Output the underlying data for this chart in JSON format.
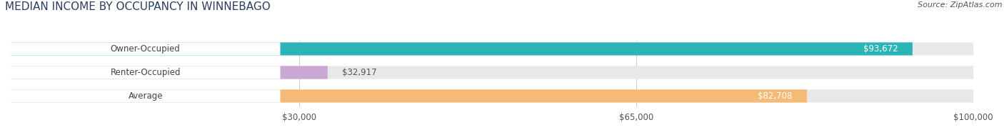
{
  "title": "MEDIAN INCOME BY OCCUPANCY IN WINNEBAGO",
  "source": "Source: ZipAtlas.com",
  "categories": [
    "Owner-Occupied",
    "Renter-Occupied",
    "Average"
  ],
  "values": [
    93672,
    32917,
    82708
  ],
  "labels": [
    "$93,672",
    "$32,917",
    "$82,708"
  ],
  "bar_colors": [
    "#2bb5b8",
    "#c9a8d4",
    "#f5ba76"
  ],
  "bar_bg_color": "#e8e8e8",
  "xmax": 100000,
  "xticks": [
    30000,
    65000,
    100000
  ],
  "xtick_labels": [
    "$30,000",
    "$65,000",
    "$100,000"
  ],
  "title_fontsize": 11,
  "source_fontsize": 8,
  "label_fontsize": 8.5,
  "cat_fontsize": 8.5,
  "bar_height": 0.55,
  "background_color": "#ffffff",
  "label_inside_color": "white",
  "label_outside_color": "#555555",
  "cat_text_color": "#444444"
}
